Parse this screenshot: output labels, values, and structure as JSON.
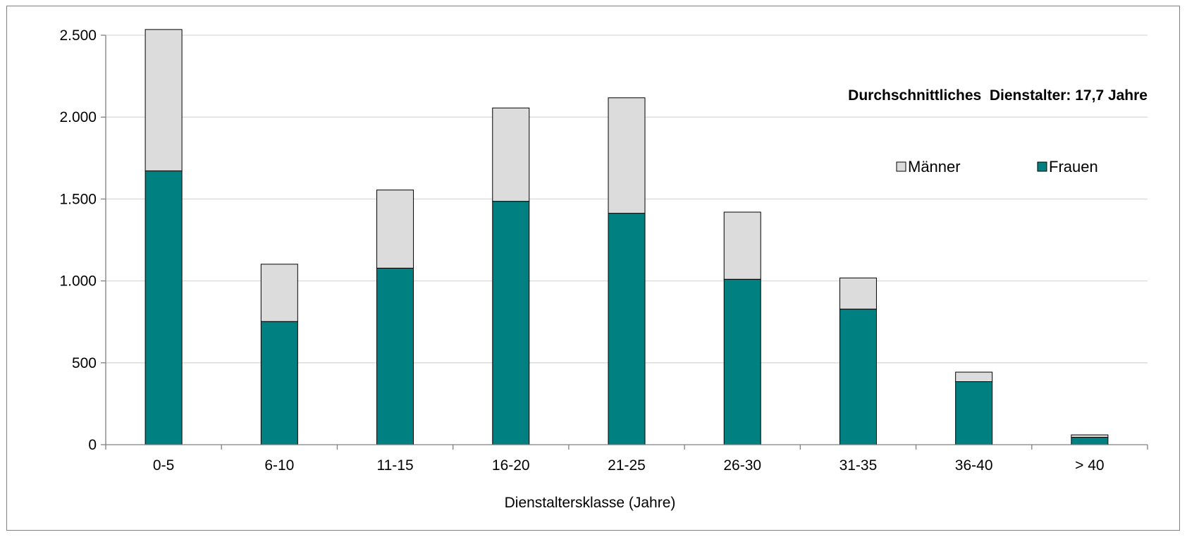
{
  "chart_data": {
    "type": "bar",
    "stacked": true,
    "categories": [
      "0-5",
      "6-10",
      "11-15",
      "16-20",
      "21-25",
      "26-30",
      "31-35",
      "36-40",
      "> 40"
    ],
    "series": [
      {
        "name": "Frauen",
        "color": "#008080",
        "values": [
          1672,
          752,
          1078,
          1486,
          1413,
          1010,
          828,
          385,
          45
        ]
      },
      {
        "name": "Männer",
        "color": "#dcdcdc",
        "values": [
          863,
          350,
          477,
          570,
          705,
          410,
          190,
          58,
          15
        ]
      }
    ],
    "xlabel": "Dienstaltersklasse (Jahre)",
    "ylabel": "",
    "ylim": [
      0,
      2500
    ],
    "yticks": [
      0,
      500,
      1000,
      1500,
      2000,
      2500
    ],
    "ytick_labels": [
      "0",
      "500",
      "1.000",
      "1.500",
      "2.000",
      "2.500"
    ],
    "annotation": "Durchschnittliches  Dienstalter: 17,7 Jahre",
    "legend": {
      "position": "top-right",
      "order": [
        "Männer",
        "Frauen"
      ]
    },
    "grid": true,
    "gridline_color": "#d9d9d9",
    "axis_color": "#808080"
  }
}
